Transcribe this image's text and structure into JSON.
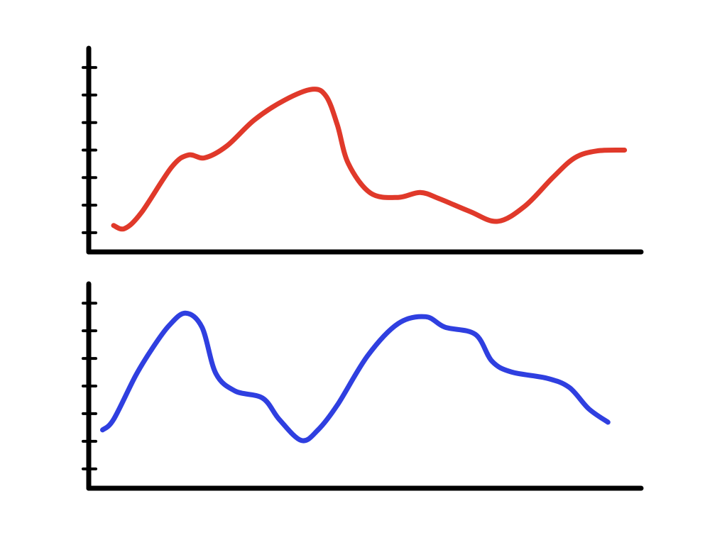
{
  "chart_data": [
    {
      "type": "line",
      "xlim": [
        0,
        20
      ],
      "ylim": [
        0.3,
        7.7
      ],
      "yticks": [
        1,
        2,
        3,
        4,
        5,
        6,
        7
      ],
      "series": [
        {
          "color": "#e0392a",
          "x": [
            0.9,
            1.3,
            1.9,
            3.0,
            3.6,
            4.2,
            5.0,
            6.0,
            7.1,
            8.1,
            8.6,
            9.0,
            9.4,
            10.2,
            11.2,
            12.0,
            12.7,
            13.8,
            14.8,
            15.8,
            16.8,
            17.6,
            18.4,
            19.4
          ],
          "values": [
            1.26,
            1.15,
            1.72,
            3.38,
            3.82,
            3.72,
            4.15,
            5.1,
            5.82,
            6.21,
            5.95,
            4.92,
            3.51,
            2.44,
            2.28,
            2.46,
            2.23,
            1.77,
            1.41,
            1.97,
            3.0,
            3.72,
            3.97,
            4.0
          ]
        }
      ]
    },
    {
      "type": "line",
      "xlim": [
        0,
        20
      ],
      "ylim": [
        0.3,
        7.7
      ],
      "yticks": [
        1,
        2,
        3,
        4,
        5,
        6,
        7
      ],
      "series": [
        {
          "color": "#2f3fe0",
          "x": [
            0.5,
            0.9,
            1.7,
            2.3,
            2.9,
            3.5,
            4.1,
            4.6,
            5.3,
            6.3,
            6.9,
            7.7,
            8.3,
            9.0,
            10.1,
            11.2,
            12.2,
            12.9,
            14.0,
            14.6,
            15.3,
            16.6,
            17.4,
            18.1,
            18.8
          ],
          "values": [
            2.41,
            2.79,
            4.38,
            5.36,
            6.18,
            6.64,
            6.13,
            4.46,
            3.82,
            3.56,
            2.79,
            2.03,
            2.41,
            3.31,
            5.1,
            6.26,
            6.51,
            6.13,
            5.87,
            4.9,
            4.51,
            4.28,
            3.95,
            3.18,
            2.69
          ]
        }
      ]
    }
  ]
}
